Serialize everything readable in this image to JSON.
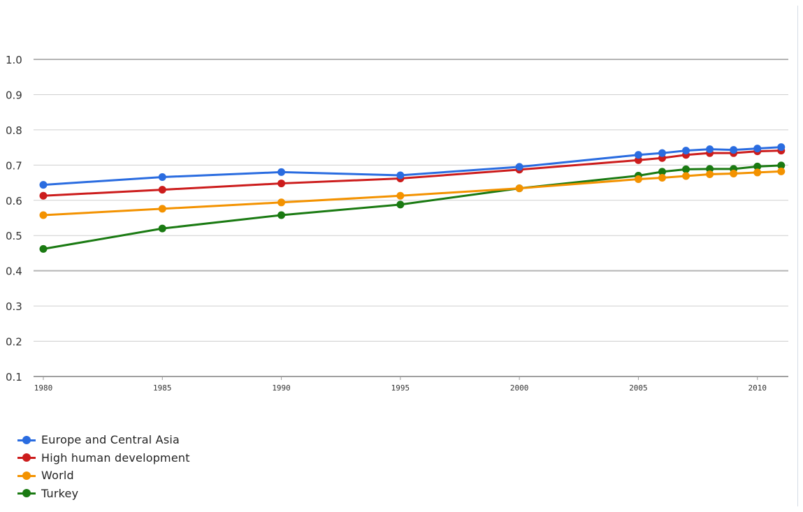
{
  "chart_data": {
    "type": "line",
    "title": "",
    "xlabel": "",
    "ylabel": "",
    "x": [
      1980,
      1985,
      1990,
      1995,
      2000,
      2005,
      2006,
      2007,
      2008,
      2009,
      2010,
      2011
    ],
    "xticks": [
      "1980",
      "1985",
      "1990",
      "1995",
      "2000",
      "2005",
      "2010"
    ],
    "yticks": [
      "1.0",
      "0.9",
      "0.8",
      "0.7",
      "0.6",
      "0.5",
      "0.4",
      "0.3",
      "0.2",
      "0.1"
    ],
    "ylim": [
      0.1,
      1.0
    ],
    "xlim": [
      1980,
      2011.3
    ],
    "grid": true,
    "legend_position": "bottom-left",
    "series": [
      {
        "name": "Europe and Central Asia",
        "color": "#2a6ce0",
        "values": [
          0.644,
          0.666,
          0.68,
          0.671,
          0.695,
          0.729,
          0.734,
          0.741,
          0.745,
          0.743,
          0.747,
          0.751
        ]
      },
      {
        "name": "High human development",
        "color": "#cc1c1c",
        "values": [
          0.613,
          0.63,
          0.648,
          0.662,
          0.687,
          0.714,
          0.72,
          0.729,
          0.734,
          0.734,
          0.739,
          0.741
        ]
      },
      {
        "name": "World",
        "color": "#f39200",
        "values": [
          0.558,
          0.576,
          0.594,
          0.613,
          0.634,
          0.66,
          0.664,
          0.669,
          0.674,
          0.676,
          0.679,
          0.682
        ]
      },
      {
        "name": "Turkey",
        "color": "#1a7a12",
        "values": [
          0.462,
          0.52,
          0.558,
          0.588,
          0.634,
          0.67,
          0.681,
          0.688,
          0.689,
          0.689,
          0.696,
          0.699
        ]
      }
    ]
  }
}
